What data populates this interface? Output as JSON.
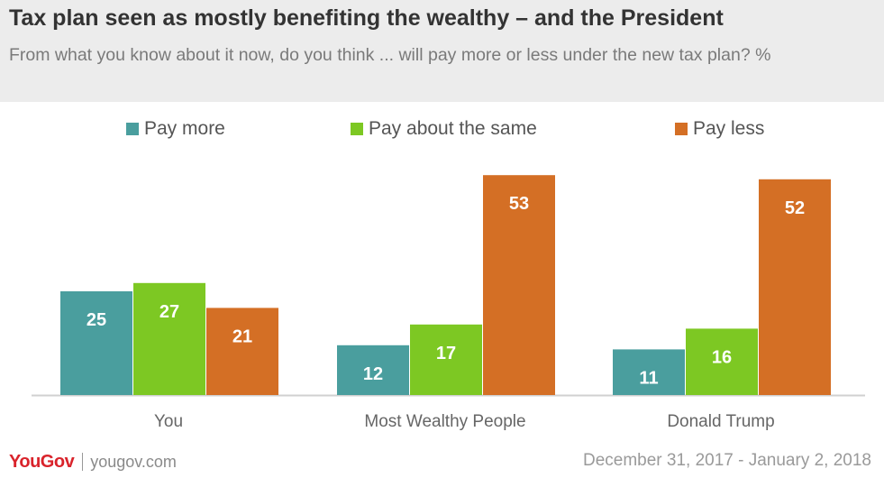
{
  "header": {
    "title": "Tax plan seen as mostly benefiting the wealthy – and the President",
    "subtitle": "From what you know about it now, do you think ... will pay more or less under the new tax plan? %"
  },
  "colors": {
    "pay_more": "#4a9e9e",
    "pay_same": "#7dc823",
    "pay_less": "#d46f25",
    "header_bg": "#ececec"
  },
  "chart_data": {
    "type": "bar",
    "title": "Tax plan seen as mostly benefiting the wealthy – and the President",
    "subtitle": "From what you know about it now, do you think ... will pay more or less under the new tax plan? %",
    "categories": [
      "You",
      "Most Wealthy People",
      "Donald Trump"
    ],
    "series": [
      {
        "name": "Pay more",
        "color": "#4a9e9e",
        "values": [
          25,
          12,
          11
        ]
      },
      {
        "name": "Pay about the same",
        "color": "#7dc823",
        "values": [
          27,
          17,
          16
        ]
      },
      {
        "name": "Pay less",
        "color": "#d46f25",
        "values": [
          21,
          53,
          52
        ]
      }
    ],
    "ylim": [
      0,
      55
    ],
    "grid": false,
    "data_labels": true,
    "legend_position": "top"
  },
  "footer": {
    "brand": "YouGov",
    "site": "yougov.com",
    "dates": "December 31, 2017 - January 2, 2018"
  }
}
